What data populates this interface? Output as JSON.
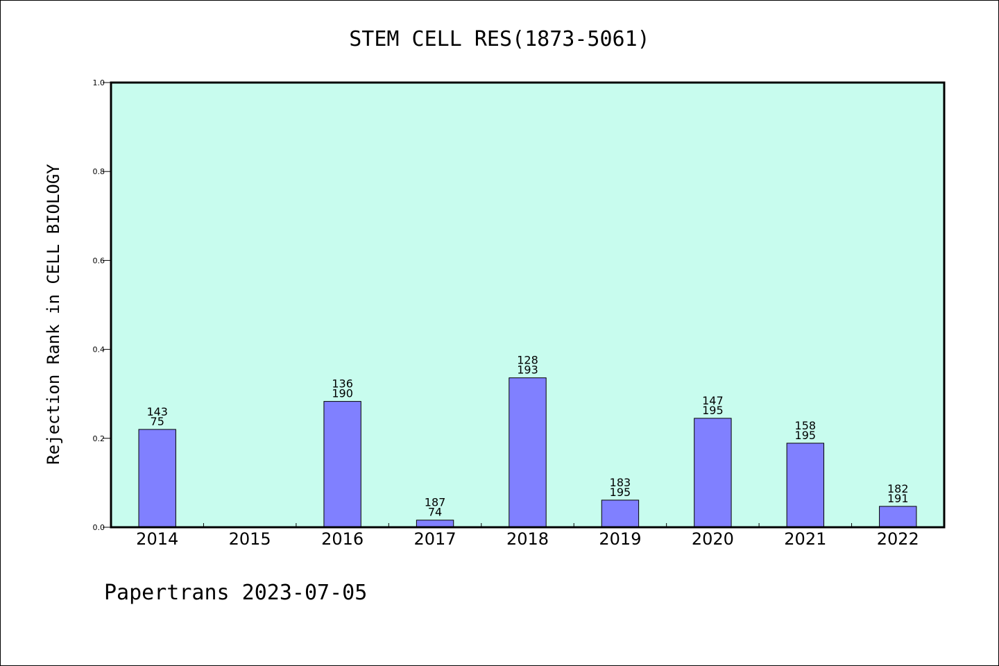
{
  "chart_data": {
    "type": "bar",
    "title": "STEM CELL RES(1873-5061)",
    "xlabel": "",
    "ylabel": "Rejection Rank in CELL BIOLOGY",
    "categories": [
      "2014",
      "2015",
      "2016",
      "2017",
      "2018",
      "2019",
      "2020",
      "2021",
      "2022"
    ],
    "values": [
      0.22,
      null,
      0.283,
      0.016,
      0.336,
      0.061,
      0.245,
      0.189,
      0.047
    ],
    "labels_top": [
      "143",
      "",
      "136",
      "187",
      "128",
      "183",
      "147",
      "158",
      "182"
    ],
    "labels_bottom": [
      "75",
      "",
      "190",
      "74",
      "193",
      "195",
      "195",
      "195",
      "191"
    ],
    "ylim": [
      0,
      1.0
    ],
    "yticks": [
      "0.0",
      "0.2",
      "0.4",
      "0.6",
      "0.8",
      "1.0"
    ],
    "grid": false,
    "bar_color": "#8080ff",
    "plot_background": "#c8fcee",
    "footer": "Papertrans 2023-07-05"
  }
}
